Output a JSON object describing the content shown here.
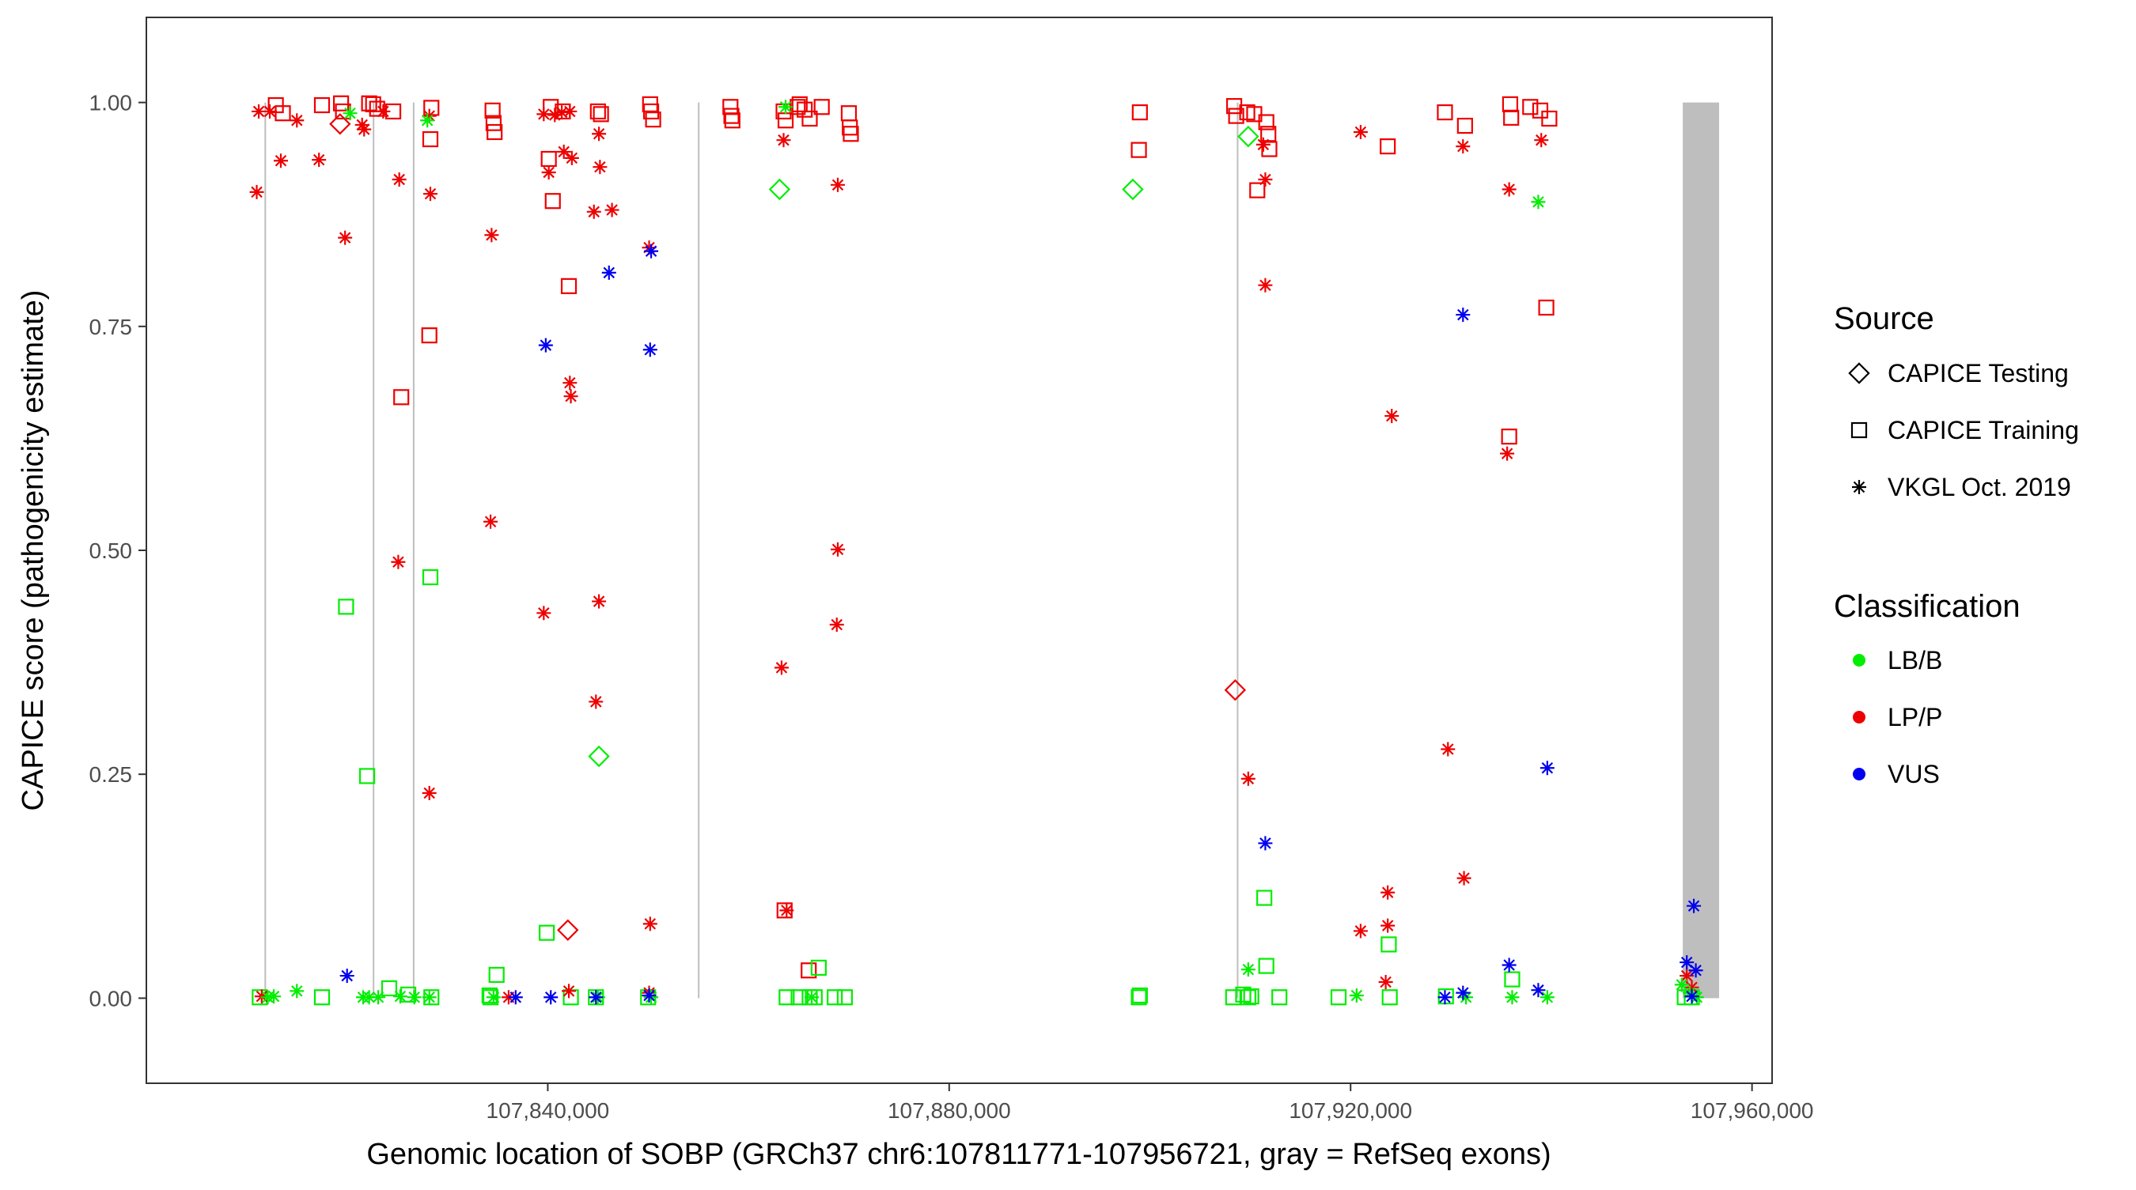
{
  "chart_data": {
    "type": "scatter",
    "title": "",
    "xlabel": "Genomic location of SOBP (GRCh37 chr6:107811771-107956721, gray = RefSeq exons)",
    "ylabel": "CAPICE score (pathogenicity estimate)",
    "xlim": [
      107800000,
      107962000
    ],
    "ylim": [
      -0.095,
      1.095
    ],
    "x_ticks": [
      107840000,
      107880000,
      107920000,
      107960000
    ],
    "x_tick_labels": [
      "107,840,000",
      "107,880,000",
      "107,920,000",
      "107,960,000"
    ],
    "y_ticks": [
      0,
      0.25,
      0.5,
      0.75,
      1
    ],
    "y_tick_labels": [
      "0.00",
      "0.25",
      "0.50",
      "0.75",
      "1.00"
    ],
    "grid": false,
    "legend_position": "right",
    "legend": {
      "source_title": "Source",
      "source_items": [
        {
          "label": "CAPICE Testing",
          "shape": "diamond"
        },
        {
          "label": "CAPICE Training",
          "shape": "square"
        },
        {
          "label": "VKGL Oct. 2019",
          "shape": "asterisk"
        }
      ],
      "classification_title": "Classification",
      "classification_items": [
        {
          "label": "LB/B",
          "color": "#00ee00"
        },
        {
          "label": "LP/P",
          "color": "#ee0000"
        },
        {
          "label": "VUS",
          "color": "#0000ee"
        }
      ]
    },
    "exons": [
      {
        "start": 107811771,
        "end": 107811850
      },
      {
        "start": 107822560,
        "end": 107822640
      },
      {
        "start": 107826560,
        "end": 107826640
      },
      {
        "start": 107854960,
        "end": 107855040
      },
      {
        "start": 107908660,
        "end": 107908740
      },
      {
        "start": 107953100,
        "end": 107956721
      }
    ],
    "series": [
      {
        "source": "CAPICE Training",
        "classification": "LP/P",
        "points": [
          [
            107812900,
            0.997
          ],
          [
            107813600,
            0.988
          ],
          [
            107817500,
            0.997
          ],
          [
            107819400,
            0.999
          ],
          [
            107819600,
            0.99
          ],
          [
            107822200,
            0.999
          ],
          [
            107822600,
            0.998
          ],
          [
            107823000,
            0.993
          ],
          [
            107824600,
            0.99
          ],
          [
            107828400,
            0.994
          ],
          [
            107828300,
            0.959
          ],
          [
            107828200,
            0.74
          ],
          [
            107825400,
            0.671
          ],
          [
            107834500,
            0.991
          ],
          [
            107834600,
            0.977
          ],
          [
            107834700,
            0.967
          ],
          [
            107840300,
            0.995
          ],
          [
            107841500,
            0.99
          ],
          [
            107840100,
            0.937
          ],
          [
            107840500,
            0.89
          ],
          [
            107842100,
            0.795
          ],
          [
            107845000,
            0.99
          ],
          [
            107845300,
            0.987
          ],
          [
            107850200,
            0.998
          ],
          [
            107850300,
            0.99
          ],
          [
            107850500,
            0.981
          ],
          [
            107858200,
            0.995
          ],
          [
            107858300,
            0.985
          ],
          [
            107858400,
            0.98
          ],
          [
            107863500,
            0.99
          ],
          [
            107863700,
            0.98
          ],
          [
            107864900,
            0.995
          ],
          [
            107865100,
            0.998
          ],
          [
            107865600,
            0.992
          ],
          [
            107866100,
            0.982
          ],
          [
            107867300,
            0.995
          ],
          [
            107870000,
            0.988
          ],
          [
            107870100,
            0.972
          ],
          [
            107870200,
            0.965
          ],
          [
            107863600,
            0.098
          ],
          [
            107866000,
            0.031
          ],
          [
            107899000,
            0.989
          ],
          [
            107898900,
            0.947
          ],
          [
            107908400,
            0.996
          ],
          [
            107908600,
            0.985
          ],
          [
            107909700,
            0.989
          ],
          [
            107910400,
            0.987
          ],
          [
            107910700,
            0.902
          ],
          [
            107911600,
            0.978
          ],
          [
            107911800,
            0.965
          ],
          [
            107911900,
            0.948
          ],
          [
            107923700,
            0.951
          ],
          [
            107929400,
            0.989
          ],
          [
            107931400,
            0.974
          ],
          [
            107935900,
            0.998
          ],
          [
            107936000,
            0.983
          ],
          [
            107937900,
            0.995
          ],
          [
            107938900,
            0.991
          ],
          [
            107939800,
            0.982
          ],
          [
            107939500,
            0.771
          ],
          [
            107935800,
            0.627
          ]
        ]
      },
      {
        "source": "CAPICE Training",
        "classification": "LB/B",
        "points": [
          [
            107811300,
            0.001
          ],
          [
            107817500,
            0.001
          ],
          [
            107819900,
            0.437
          ],
          [
            107822000,
            0.248
          ],
          [
            107824200,
            0.011
          ],
          [
            107826100,
            0.004
          ],
          [
            107828300,
            0.47
          ],
          [
            107828400,
            0.001
          ],
          [
            107834200,
            0.003
          ],
          [
            107834300,
            0.001
          ],
          [
            107834900,
            0.026
          ],
          [
            107839900,
            0.073
          ],
          [
            107842300,
            0.001
          ],
          [
            107844800,
            0.001
          ],
          [
            107850000,
            0.001
          ],
          [
            107863800,
            0.001
          ],
          [
            107865000,
            0.001
          ],
          [
            107866100,
            0.001
          ],
          [
            107866600,
            0.001
          ],
          [
            107867000,
            0.034
          ],
          [
            107868600,
            0.001
          ],
          [
            107869600,
            0.001
          ],
          [
            107898900,
            0.001
          ],
          [
            107899000,
            0.003
          ],
          [
            107908300,
            0.001
          ],
          [
            107909300,
            0.004
          ],
          [
            107909800,
            0.001
          ],
          [
            107910100,
            0.002
          ],
          [
            107911400,
            0.112
          ],
          [
            107911600,
            0.036
          ],
          [
            107912900,
            0.001
          ],
          [
            107918800,
            0.001
          ],
          [
            107923800,
            0.06
          ],
          [
            107923900,
            0.001
          ],
          [
            107929500,
            0.002
          ],
          [
            107936100,
            0.021
          ],
          [
            107953300,
            0.001
          ],
          [
            107954000,
            0.001
          ]
        ]
      },
      {
        "source": "CAPICE Testing",
        "classification": "LP/P",
        "points": [
          [
            107819300,
            0.976
          ],
          [
            107842000,
            0.076
          ],
          [
            107908500,
            0.344
          ]
        ]
      },
      {
        "source": "CAPICE Testing",
        "classification": "LB/B",
        "points": [
          [
            107863100,
            0.903
          ],
          [
            107898300,
            0.903
          ],
          [
            107909800,
            0.962
          ],
          [
            107845100,
            0.27
          ]
        ]
      },
      {
        "source": "VKGL Oct. 2019",
        "classification": "LP/P",
        "points": [
          [
            107811200,
            0.99
          ],
          [
            107811000,
            0.9
          ],
          [
            107812300,
            0.99
          ],
          [
            107813400,
            0.935
          ],
          [
            107815000,
            0.98
          ],
          [
            107817200,
            0.936
          ],
          [
            107819800,
            0.849
          ],
          [
            107821500,
            0.975
          ],
          [
            107821700,
            0.97
          ],
          [
            107823600,
            0.99
          ],
          [
            107825200,
            0.914
          ],
          [
            107828300,
            0.898
          ],
          [
            107828200,
            0.985
          ],
          [
            107825100,
            0.487
          ],
          [
            107828200,
            0.229
          ],
          [
            107834400,
            0.852
          ],
          [
            107834300,
            0.532
          ],
          [
            107839600,
            0.987
          ],
          [
            107840100,
            0.922
          ],
          [
            107840700,
            0.986
          ],
          [
            107841400,
            0.989
          ],
          [
            107841600,
            0.945
          ],
          [
            107842200,
            0.99
          ],
          [
            107842400,
            0.938
          ],
          [
            107842200,
            0.687
          ],
          [
            107842300,
            0.672
          ],
          [
            107844600,
            0.878
          ],
          [
            107845100,
            0.965
          ],
          [
            107845200,
            0.928
          ],
          [
            107846400,
            0.88
          ],
          [
            107839600,
            0.43
          ],
          [
            107845100,
            0.443
          ],
          [
            107844800,
            0.331
          ],
          [
            107850100,
            0.838
          ],
          [
            107850200,
            0.083
          ],
          [
            107863500,
            0.958
          ],
          [
            107863300,
            0.369
          ],
          [
            107863800,
            0.098
          ],
          [
            107868900,
            0.908
          ],
          [
            107868900,
            0.501
          ],
          [
            107868800,
            0.417
          ],
          [
            107911300,
            0.953
          ],
          [
            107911500,
            0.914
          ],
          [
            107911500,
            0.796
          ],
          [
            107909800,
            0.245
          ],
          [
            107921000,
            0.967
          ],
          [
            107931200,
            0.951
          ],
          [
            107929700,
            0.278
          ],
          [
            107924100,
            0.65
          ],
          [
            107931300,
            0.134
          ],
          [
            107921000,
            0.075
          ],
          [
            107923700,
            0.118
          ],
          [
            107923700,
            0.081
          ],
          [
            107923500,
            0.018
          ],
          [
            107935800,
            0.903
          ],
          [
            107935600,
            0.608
          ],
          [
            107939000,
            0.958
          ],
          [
            107811500,
            0.002
          ],
          [
            107836100,
            0.001
          ],
          [
            107842100,
            0.008
          ],
          [
            107850100,
            0.006
          ],
          [
            107953500,
            0.025
          ],
          [
            107954000,
            0.012
          ]
        ]
      },
      {
        "source": "VKGL Oct. 2019",
        "classification": "LB/B",
        "points": [
          [
            107812100,
            0.001
          ],
          [
            107812700,
            0.002
          ],
          [
            107815000,
            0.008
          ],
          [
            107820300,
            0.988
          ],
          [
            107821600,
            0.001
          ],
          [
            107822200,
            0.001
          ],
          [
            107823100,
            0.001
          ],
          [
            107825300,
            0.002
          ],
          [
            107826700,
            0.001
          ],
          [
            107828000,
            0.98
          ],
          [
            107828200,
            0.001
          ],
          [
            107834600,
            0.001
          ],
          [
            107845000,
            0.001
          ],
          [
            107850300,
            0.001
          ],
          [
            107863700,
            0.995
          ],
          [
            107866300,
            0.001
          ],
          [
            107909800,
            0.032
          ],
          [
            107920600,
            0.003
          ],
          [
            107931500,
            0.001
          ],
          [
            107936100,
            0.001
          ],
          [
            107938700,
            0.889
          ],
          [
            107939600,
            0.001
          ],
          [
            107953000,
            0.015
          ],
          [
            107953800,
            0.006
          ],
          [
            107954500,
            0.001
          ]
        ]
      },
      {
        "source": "VKGL Oct. 2019",
        "classification": "VUS",
        "points": [
          [
            107820000,
            0.025
          ],
          [
            107839800,
            0.729
          ],
          [
            107846100,
            0.81
          ],
          [
            107850300,
            0.834
          ],
          [
            107850200,
            0.724
          ],
          [
            107836800,
            0.001
          ],
          [
            107840300,
            0.001
          ],
          [
            107844800,
            0.001
          ],
          [
            107850100,
            0.003
          ],
          [
            107911500,
            0.173
          ],
          [
            107931200,
            0.763
          ],
          [
            107939600,
            0.257
          ],
          [
            107935800,
            0.037
          ],
          [
            107938700,
            0.009
          ],
          [
            107929400,
            0.001
          ],
          [
            107931200,
            0.006
          ],
          [
            107954200,
            0.103
          ],
          [
            107953500,
            0.04
          ],
          [
            107954400,
            0.031
          ],
          [
            107954000,
            0.002
          ]
        ]
      }
    ],
    "class_colors": {
      "LB/B": "#00ee00",
      "LP/P": "#ee0000",
      "VUS": "#0000ee"
    },
    "exon_color": "#bebebe"
  }
}
